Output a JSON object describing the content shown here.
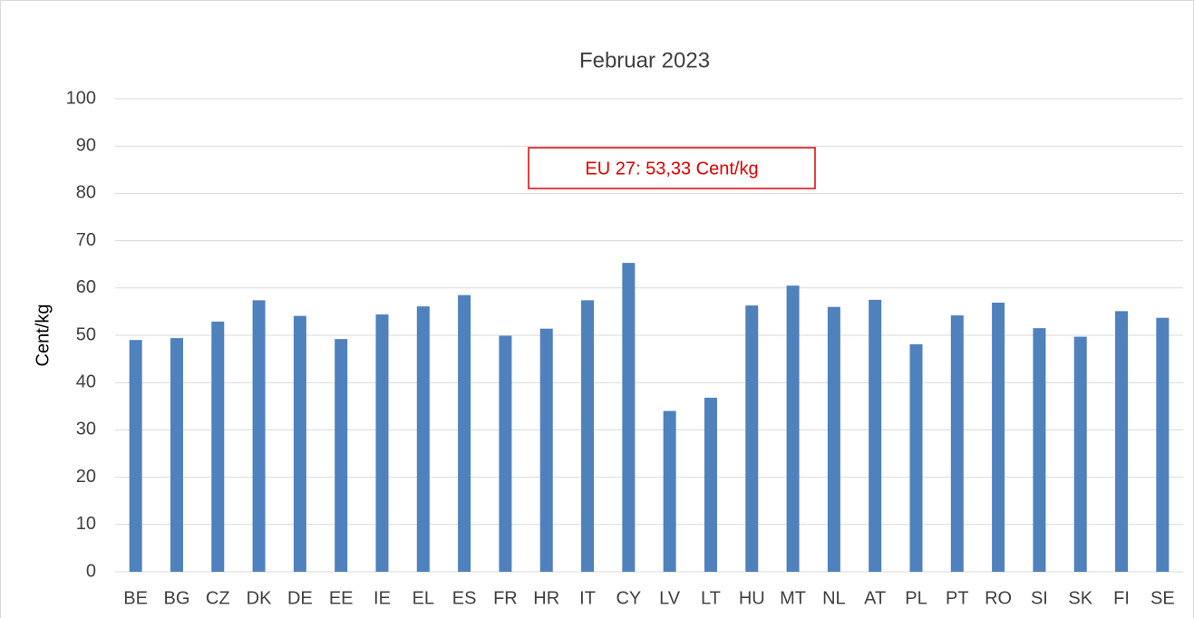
{
  "chart_data": {
    "type": "bar",
    "title": "Februar 2023",
    "y_label": "Cent/kg",
    "annotation": "EU 27: 53,33 Cent/kg",
    "categories": [
      "BE",
      "BG",
      "CZ",
      "DK",
      "DE",
      "EE",
      "IE",
      "EL",
      "ES",
      "FR",
      "HR",
      "IT",
      "CY",
      "LV",
      "LT",
      "HU",
      "MT",
      "NL",
      "AT",
      "PL",
      "PT",
      "RO",
      "SI",
      "SK",
      "FI",
      "SE"
    ],
    "values": [
      49.0,
      49.4,
      52.9,
      57.4,
      54.1,
      49.2,
      54.4,
      56.1,
      58.5,
      49.9,
      51.4,
      57.4,
      65.3,
      34.0,
      36.8,
      56.3,
      60.5,
      56.0,
      57.5,
      48.1,
      54.2,
      56.9,
      51.5,
      49.7,
      55.1,
      53.7
    ],
    "color": "#4f81bd",
    "ylim": [
      0,
      100
    ],
    "yticks": [
      0,
      10,
      20,
      30,
      40,
      50,
      60,
      70,
      80,
      90,
      100
    ],
    "grid": true
  }
}
